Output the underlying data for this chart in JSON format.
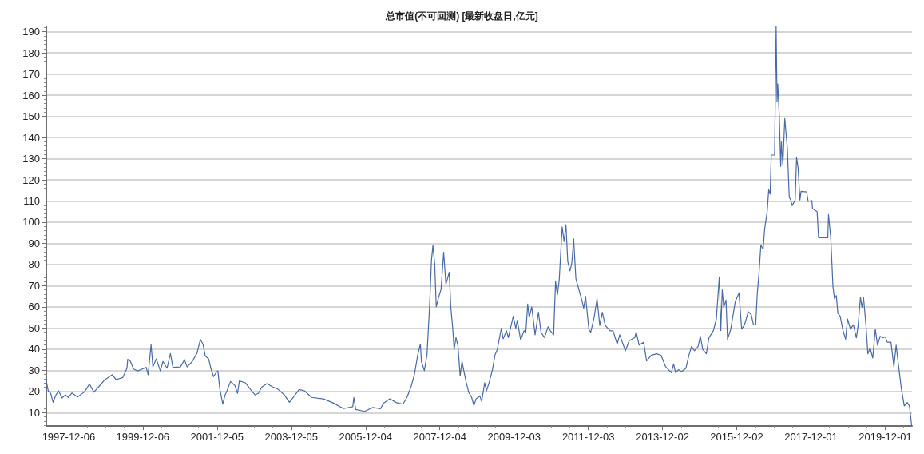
{
  "chart_data": {
    "type": "line",
    "title": "总市值(不可回测) [最新收盘日,亿元]",
    "x": [
      "1997-05-01",
      "1997-05-20",
      "1997-06-14",
      "1997-07-06",
      "1997-08-04",
      "1997-08-30",
      "1997-10-02",
      "1997-11-04",
      "1997-12-03",
      "1998-01-08",
      "1998-03-04",
      "1998-05-09",
      "1998-06-29",
      "1998-08-12",
      "1998-09-28",
      "1998-11-22",
      "1999-02-07",
      "1999-03-19",
      "1999-05-23",
      "1999-07-03",
      "1999-07-10",
      "1999-08-04",
      "1999-09-06",
      "1999-10-16",
      "1999-11-22",
      "2000-01-08",
      "2000-01-27",
      "2000-02-25",
      "2000-03-14",
      "2000-04-16",
      "2000-05-26",
      "2000-06-21",
      "2000-07-31",
      "2000-09-02",
      "2000-09-27",
      "2000-12-09",
      "2001-01-19",
      "2001-02-13",
      "2001-04-05",
      "2001-05-22",
      "2001-06-24",
      "2001-07-20",
      "2001-08-11",
      "2001-09-13",
      "2001-10-08",
      "2001-10-31",
      "2001-11-28",
      "2001-12-13",
      "2002-01-01",
      "2002-01-30",
      "2002-02-21",
      "2002-03-07",
      "2002-04-16",
      "2002-05-30",
      "2002-06-24",
      "2002-07-12",
      "2002-09-09",
      "2002-10-30",
      "2002-12-13",
      "2003-01-15",
      "2003-02-16",
      "2003-04-09",
      "2003-06-02",
      "2003-07-23",
      "2003-09-27",
      "2003-11-17",
      "2003-12-27",
      "2004-02-20",
      "2004-04-12",
      "2004-06-21",
      "2004-10-15",
      "2005-01-15",
      "2005-05-01",
      "2005-07-31",
      "2005-08-11",
      "2005-08-29",
      "2005-11-25",
      "2006-02-10",
      "2006-05-01",
      "2006-05-27",
      "2006-07-31",
      "2006-10-05",
      "2006-12-06",
      "2007-01-15",
      "2007-02-24",
      "2007-03-29",
      "2007-05-01",
      "2007-05-27",
      "2007-06-06",
      "2007-07-05",
      "2007-07-31",
      "2007-08-25",
      "2007-09-13",
      "2007-09-27",
      "2007-10-15",
      "2007-10-30",
      "2007-11-21",
      "2007-12-16",
      "2008-01-11",
      "2008-02-02",
      "2008-02-24",
      "2008-03-06",
      "2008-03-21",
      "2008-04-09",
      "2008-04-23",
      "2008-05-11",
      "2008-05-30",
      "2008-06-21",
      "2008-07-09",
      "2008-07-27",
      "2008-08-18",
      "2008-09-13",
      "2008-10-12",
      "2008-11-03",
      "2008-11-25",
      "2009-01-01",
      "2009-01-19",
      "2009-02-17",
      "2009-03-07",
      "2009-04-05",
      "2009-05-05",
      "2009-05-30",
      "2009-06-21",
      "2009-07-31",
      "2009-08-18",
      "2009-09-20",
      "2009-10-08",
      "2009-11-25",
      "2009-12-20",
      "2010-01-04",
      "2010-02-06",
      "2010-03-10",
      "2010-03-29",
      "2010-04-16",
      "2010-05-01",
      "2010-05-26",
      "2010-06-28",
      "2010-07-31",
      "2010-08-25",
      "2010-09-27",
      "2010-11-03",
      "2010-11-25",
      "2010-12-27",
      "2011-01-15",
      "2011-02-02",
      "2011-02-20",
      "2011-03-21",
      "2011-04-09",
      "2011-04-27",
      "2011-05-15",
      "2011-06-06",
      "2011-06-24",
      "2011-07-12",
      "2011-08-03",
      "2011-09-05",
      "2011-10-01",
      "2011-10-19",
      "2011-11-06",
      "2011-12-09",
      "2011-12-27",
      "2012-01-29",
      "2012-02-27",
      "2012-03-25",
      "2012-04-19",
      "2012-05-18",
      "2012-07-04",
      "2012-08-02",
      "2012-09-12",
      "2012-10-07",
      "2012-12-02",
      "2013-01-08",
      "2013-03-03",
      "2013-03-18",
      "2013-04-16",
      "2013-05-30",
      "2013-06-28",
      "2013-08-11",
      "2013-10-04",
      "2013-11-17",
      "2014-01-01",
      "2014-01-30",
      "2014-02-27",
      "2014-03-21",
      "2014-04-09",
      "2014-05-08",
      "2014-06-06",
      "2014-07-20",
      "2014-08-18",
      "2014-09-13",
      "2014-10-12",
      "2014-11-17",
      "2014-12-09",
      "2015-01-01",
      "2015-02-06",
      "2015-03-03",
      "2015-04-16",
      "2015-05-15",
      "2015-06-13",
      "2015-06-28",
      "2015-07-12",
      "2015-07-27",
      "2015-08-18",
      "2015-09-02",
      "2015-10-04",
      "2015-11-17",
      "2015-12-24",
      "2016-01-19",
      "2016-02-16",
      "2016-03-24",
      "2016-04-22",
      "2016-05-14",
      "2016-06-05",
      "2016-06-20",
      "2016-07-08",
      "2016-07-26",
      "2016-08-17",
      "2016-09-01",
      "2016-09-26",
      "2016-10-11",
      "2016-10-25",
      "2016-11-05",
      "2016-12-08",
      "2016-12-23",
      "2017-01-01",
      "2017-01-08",
      "2017-01-23",
      "2017-02-06",
      "2017-02-13",
      "2017-02-27",
      "2017-03-18",
      "2017-04-12",
      "2017-05-01",
      "2017-05-15",
      "2017-05-30",
      "2017-06-28",
      "2017-07-12",
      "2017-07-27",
      "2017-08-14",
      "2017-08-25",
      "2017-10-19",
      "2017-11-03",
      "2017-12-09",
      "2017-12-16",
      "2018-01-30",
      "2018-02-13",
      "2018-05-15",
      "2018-05-22",
      "2018-06-13",
      "2018-07-05",
      "2018-07-20",
      "2018-08-07",
      "2018-08-22",
      "2018-09-13",
      "2018-10-12",
      "2018-11-06",
      "2018-11-25",
      "2018-12-24",
      "2019-01-22",
      "2019-02-20",
      "2019-03-10",
      "2019-04-01",
      "2019-04-16",
      "2019-05-01",
      "2019-05-26",
      "2019-06-13",
      "2019-07-05",
      "2019-07-31",
      "2019-08-25",
      "2019-09-16",
      "2019-10-12",
      "2019-11-03",
      "2019-12-02",
      "2019-12-20",
      "2020-01-26",
      "2020-02-24",
      "2020-03-17",
      "2020-04-11",
      "2020-05-07",
      "2020-06-05",
      "2020-07-04",
      "2020-07-26",
      "2020-08-17"
    ],
    "series": [
      {
        "color": "#4a6aa5",
        "values": [
          25,
          20.3,
          19,
          14.9,
          18.4,
          20.3,
          16.9,
          18.4,
          17.2,
          19.3,
          17.4,
          19.7,
          23.5,
          19.7,
          22.2,
          25.3,
          27.9,
          25.6,
          26.6,
          31,
          35.2,
          34.4,
          30.6,
          29.7,
          30.4,
          31.4,
          27.9,
          42.1,
          31.6,
          35.4,
          29.7,
          34.2,
          31,
          37.9,
          31.4,
          31.6,
          35,
          31.6,
          34.2,
          38.2,
          44.6,
          42.3,
          36.7,
          35.4,
          30.4,
          27,
          29.1,
          29.7,
          21.2,
          14,
          18.2,
          19.7,
          24.7,
          22.8,
          19.1,
          25,
          24.1,
          20.9,
          18.4,
          19.1,
          22,
          23.7,
          22.2,
          21.2,
          18.4,
          14.9,
          17.4,
          20.9,
          20.3,
          17.2,
          16.5,
          14.7,
          11.9,
          12.8,
          17.2,
          11.5,
          10.6,
          12.4,
          11.9,
          14.4,
          16.5,
          14.7,
          14,
          17.2,
          22.2,
          27.9,
          37.3,
          42.4,
          34.2,
          29.8,
          37.3,
          60,
          82,
          89,
          80.2,
          60,
          64.4,
          68.2,
          85.8,
          70.7,
          74.5,
          76.4,
          60,
          49.9,
          39.8,
          45.5,
          41.7,
          27.3,
          34.2,
          29.8,
          24.7,
          19.7,
          17.2,
          13.4,
          16.5,
          17.8,
          15.3,
          24.1,
          20.3,
          24.7,
          30.4,
          37.3,
          39.8,
          49.9,
          44.9,
          48.7,
          45.5,
          55.6,
          49.9,
          53.7,
          44.3,
          48.7,
          48,
          61.3,
          55,
          60,
          46.8,
          57.5,
          48,
          45.5,
          50.6,
          48.7,
          46.8,
          72,
          65.7,
          72.6,
          97.8,
          90.9,
          98.8,
          81.4,
          77,
          80.8,
          92.1,
          73.2,
          67.6,
          63.1,
          59.4,
          65,
          49.3,
          48,
          55,
          63.8,
          51.2,
          57.5,
          51.2,
          48.7,
          48.7,
          42.4,
          46.8,
          39.2,
          44,
          45.4,
          48.1,
          41.9,
          43.3,
          34.4,
          37.1,
          37.8,
          37.1,
          31.7,
          30.3,
          28.9,
          33,
          28.9,
          30.3,
          29.3,
          31,
          37.1,
          41.3,
          39.2,
          41.3,
          46.1,
          39.9,
          37.8,
          45.4,
          48.8,
          54.3,
          74.2,
          48.8,
          68,
          59.8,
          63.2,
          44.7,
          49.5,
          62.5,
          66.6,
          49.5,
          51.5,
          57.7,
          56.3,
          51.5,
          51.5,
          65.9,
          76.2,
          89.2,
          87.2,
          96.8,
          105,
          115.3,
          113.2,
          131.7,
          131.7,
          192.5,
          157.1,
          165.3,
          150.2,
          126.3,
          137.9,
          126.9,
          148.9,
          135.2,
          111.9,
          110.5,
          107.8,
          110.5,
          130.4,
          125.6,
          110.5,
          114.6,
          114.3,
          109.8,
          110.2,
          106.4,
          105,
          92.7,
          92.7,
          103.6,
          92.7,
          69.4,
          63.9,
          65.3,
          57,
          55.7,
          48.8,
          44.7,
          54.3,
          49.5,
          51.5,
          45.4,
          51.5,
          64.6,
          59.8,
          64.6,
          50.9,
          37.8,
          40.6,
          35.8,
          49.5,
          41.9,
          46.1,
          45.4,
          45.8,
          43.3,
          43.3,
          31.7,
          41.9,
          31.7,
          21.4,
          13.2,
          14.8,
          13.2,
          3.7
        ]
      }
    ],
    "xlim": [
      "1997-05-01",
      "2020-08-20"
    ],
    "xticks": [
      {
        "value": "1997-06-06",
        "label": null
      },
      "1997-12-06",
      {
        "value": "1998-06-06",
        "label": null
      },
      {
        "value": "1998-12-06",
        "label": null
      },
      {
        "value": "1999-06-07",
        "label": null
      },
      "1999-12-06",
      {
        "value": "2000-06-05",
        "label": null
      },
      {
        "value": "2000-12-05",
        "label": null
      },
      {
        "value": "2001-06-05",
        "label": null
      },
      "2001-12-05",
      {
        "value": "2002-06-05",
        "label": null
      },
      {
        "value": "2002-12-05",
        "label": null
      },
      {
        "value": "2003-06-05",
        "label": null
      },
      "2003-12-05",
      {
        "value": "2004-06-04",
        "label": null
      },
      {
        "value": "2004-12-04",
        "label": null
      },
      {
        "value": "2005-06-04",
        "label": null
      },
      "2005-12-04",
      {
        "value": "2006-06-04",
        "label": null
      },
      {
        "value": "2006-12-04",
        "label": null
      },
      {
        "value": "2007-06-04",
        "label": null
      },
      "2007-12-04",
      {
        "value": "2008-06-03",
        "label": null
      },
      {
        "value": "2008-12-03",
        "label": null
      },
      {
        "value": "2009-06-03",
        "label": null
      },
      "2009-12-03",
      {
        "value": "2010-06-03",
        "label": null
      },
      {
        "value": "2010-12-03",
        "label": null
      },
      {
        "value": "2011-06-03",
        "label": null
      },
      "2011-12-03",
      {
        "value": "2012-06-02",
        "label": null
      },
      {
        "value": "2012-12-02",
        "label": null
      },
      {
        "value": "2013-06-02",
        "label": null
      },
      "2013-12-02",
      {
        "value": "2014-06-02",
        "label": null
      },
      {
        "value": "2014-12-02",
        "label": null
      },
      {
        "value": "2015-06-02",
        "label": null
      },
      "2015-12-02",
      {
        "value": "2016-06-01",
        "label": null
      },
      {
        "value": "2016-12-01",
        "label": null
      },
      {
        "value": "2017-06-01",
        "label": null
      },
      "2017-12-01",
      {
        "value": "2018-06-01",
        "label": null
      },
      {
        "value": "2018-12-01",
        "label": null
      },
      {
        "value": "2019-06-01",
        "label": null
      },
      "2019-12-01",
      {
        "value": "2020-05-31",
        "label": null
      }
    ],
    "ylim": [
      3.7,
      192.5
    ],
    "yticks": [
      {
        "value": 4,
        "label": null
      },
      {
        "value": 6,
        "label": null
      },
      {
        "value": 8,
        "label": null
      },
      10,
      {
        "value": 12,
        "label": null
      },
      {
        "value": 14,
        "label": null
      },
      {
        "value": 16,
        "label": null
      },
      {
        "value": 18,
        "label": null
      },
      20,
      {
        "value": 22,
        "label": null
      },
      {
        "value": 24,
        "label": null
      },
      {
        "value": 26,
        "label": null
      },
      {
        "value": 28,
        "label": null
      },
      30,
      {
        "value": 32,
        "label": null
      },
      {
        "value": 34,
        "label": null
      },
      {
        "value": 36,
        "label": null
      },
      {
        "value": 38,
        "label": null
      },
      40,
      {
        "value": 42,
        "label": null
      },
      {
        "value": 44,
        "label": null
      },
      {
        "value": 46,
        "label": null
      },
      {
        "value": 48,
        "label": null
      },
      50,
      {
        "value": 52,
        "label": null
      },
      {
        "value": 54,
        "label": null
      },
      {
        "value": 56,
        "label": null
      },
      {
        "value": 58,
        "label": null
      },
      60,
      {
        "value": 62,
        "label": null
      },
      {
        "value": 64,
        "label": null
      },
      {
        "value": 66,
        "label": null
      },
      {
        "value": 68,
        "label": null
      },
      70,
      {
        "value": 72,
        "label": null
      },
      {
        "value": 74,
        "label": null
      },
      {
        "value": 76,
        "label": null
      },
      {
        "value": 78,
        "label": null
      },
      80,
      {
        "value": 82,
        "label": null
      },
      {
        "value": 84,
        "label": null
      },
      {
        "value": 86,
        "label": null
      },
      {
        "value": 88,
        "label": null
      },
      90,
      {
        "value": 92,
        "label": null
      },
      {
        "value": 94,
        "label": null
      },
      {
        "value": 96,
        "label": null
      },
      {
        "value": 98,
        "label": null
      },
      100,
      {
        "value": 102,
        "label": null
      },
      {
        "value": 104,
        "label": null
      },
      {
        "value": 106,
        "label": null
      },
      {
        "value": 108,
        "label": null
      },
      110,
      {
        "value": 112,
        "label": null
      },
      {
        "value": 114,
        "label": null
      },
      {
        "value": 116,
        "label": null
      },
      {
        "value": 118,
        "label": null
      },
      120,
      {
        "value": 122,
        "label": null
      },
      {
        "value": 124,
        "label": null
      },
      {
        "value": 126,
        "label": null
      },
      {
        "value": 128,
        "label": null
      },
      130,
      {
        "value": 132,
        "label": null
      },
      {
        "value": 134,
        "label": null
      },
      {
        "value": 136,
        "label": null
      },
      {
        "value": 138,
        "label": null
      },
      140,
      {
        "value": 142,
        "label": null
      },
      {
        "value": 144,
        "label": null
      },
      {
        "value": 146,
        "label": null
      },
      {
        "value": 148,
        "label": null
      },
      150,
      {
        "value": 152,
        "label": null
      },
      {
        "value": 154,
        "label": null
      },
      {
        "value": 156,
        "label": null
      },
      {
        "value": 158,
        "label": null
      },
      160,
      {
        "value": 162,
        "label": null
      },
      {
        "value": 164,
        "label": null
      },
      {
        "value": 166,
        "label": null
      },
      {
        "value": 168,
        "label": null
      },
      170,
      {
        "value": 172,
        "label": null
      },
      {
        "value": 174,
        "label": null
      },
      {
        "value": 176,
        "label": null
      },
      {
        "value": 178,
        "label": null
      },
      180,
      {
        "value": 182,
        "label": null
      },
      {
        "value": 184,
        "label": null
      },
      {
        "value": 186,
        "label": null
      },
      {
        "value": 188,
        "label": null
      },
      190,
      {
        "value": 192,
        "label": null
      }
    ],
    "grid": "y"
  }
}
